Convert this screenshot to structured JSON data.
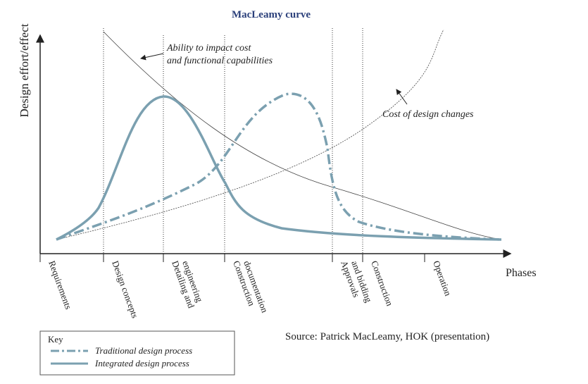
{
  "title": "MacLeamy curve",
  "y_axis_label": "Design effort/effect",
  "x_axis_label": "Phases",
  "phases": [
    [
      "Requirements"
    ],
    [
      "Design concepts"
    ],
    [
      "Detailing and",
      "engineering"
    ],
    [
      "Construction",
      "documentation"
    ],
    [
      "Approvals",
      "and bidding"
    ],
    [
      "Construction"
    ],
    [
      "Operation"
    ]
  ],
  "annotations": {
    "ability": [
      "Ability to impact cost",
      "and functional capabilities"
    ],
    "cost": "Cost of design changes"
  },
  "source": "Source: Patrick MacLeamy, HOK (presentation)",
  "key": {
    "title": "Key",
    "items": [
      "Traditional design process",
      "Integrated design process"
    ]
  }
}
